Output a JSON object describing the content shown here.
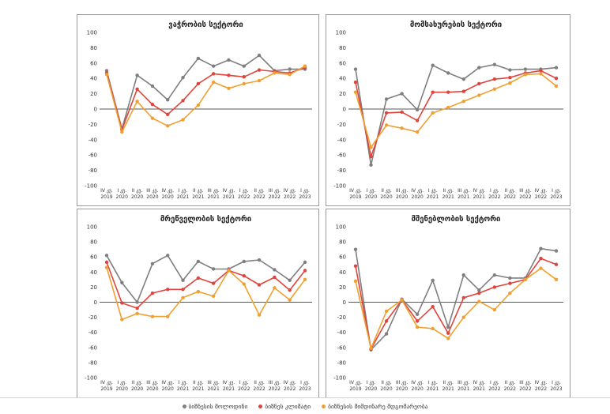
{
  "chart_data": [
    {
      "type": "line",
      "title": "ვაჭრობის სექტორი",
      "ylim": [
        -100,
        100
      ],
      "yticks": [
        100,
        80,
        60,
        40,
        20,
        0,
        -20,
        -40,
        -60,
        -80,
        -100
      ],
      "categories": [
        [
          "IV კვ.",
          "2019"
        ],
        [
          "I კვ.",
          "2020"
        ],
        [
          "II კვ.",
          "2020"
        ],
        [
          "III კვ.",
          "2020"
        ],
        [
          "IV კვ.",
          "2020"
        ],
        [
          "I კვ.",
          "2021"
        ],
        [
          "II კვ.",
          "2021"
        ],
        [
          "III კვ.",
          "2021"
        ],
        [
          "IV კვ.",
          "2021"
        ],
        [
          "I კვ.",
          "2022"
        ],
        [
          "II კვ.",
          "2022"
        ],
        [
          "III კვ.",
          "2022"
        ],
        [
          "IV კვ.",
          "2022"
        ],
        [
          "I კვ.",
          "2023"
        ]
      ],
      "series": [
        {
          "name": "ბიზნესის მოლოდინი",
          "color": "#7f7f7f",
          "values": [
            50,
            -26,
            44,
            30,
            12,
            41,
            66,
            56,
            64,
            56,
            70,
            50,
            52,
            52
          ]
        },
        {
          "name": "ბიზნეს კლიმატი",
          "color": "#e0443c",
          "values": [
            47,
            -27,
            26,
            6,
            -7,
            11,
            33,
            46,
            44,
            42,
            51,
            49,
            47,
            54
          ]
        },
        {
          "name": "ბიზნესის მიმდინარე მდგომარეობა",
          "color": "#f0a030",
          "values": [
            45,
            -30,
            10,
            -12,
            -22,
            -14,
            5,
            35,
            27,
            33,
            37,
            47,
            45,
            56
          ]
        }
      ]
    },
    {
      "type": "line",
      "title": "მომსახურების სექტორი",
      "ylim": [
        -100,
        100
      ],
      "yticks": [
        100,
        80,
        60,
        40,
        20,
        0,
        -20,
        -40,
        -60,
        -80,
        -100
      ],
      "categories": [
        [
          "IV კვ.",
          "2019"
        ],
        [
          "I კვ.",
          "2020"
        ],
        [
          "II კვ.",
          "2020"
        ],
        [
          "III კვ.",
          "2020"
        ],
        [
          "IV კვ.",
          "2020"
        ],
        [
          "I კვ.",
          "2021"
        ],
        [
          "II კვ.",
          "2021"
        ],
        [
          "III კვ.",
          "2021"
        ],
        [
          "IV კვ.",
          "2021"
        ],
        [
          "I კვ.",
          "2022"
        ],
        [
          "II კვ.",
          "2022"
        ],
        [
          "III კვ.",
          "2022"
        ],
        [
          "IV კვ.",
          "2022"
        ],
        [
          "I კვ.",
          "2023"
        ]
      ],
      "series": [
        {
          "name": "ბიზნესის მოლოდინი",
          "color": "#7f7f7f",
          "values": [
            52,
            -73,
            13,
            20,
            -1,
            57,
            47,
            39,
            54,
            58,
            51,
            52,
            52,
            54
          ]
        },
        {
          "name": "ბიზნეს კლიმატი",
          "color": "#e0443c",
          "values": [
            35,
            -62,
            -5,
            -4,
            -15,
            22,
            22,
            23,
            33,
            39,
            41,
            47,
            50,
            40
          ]
        },
        {
          "name": "ბიზნესის მიმდინარე მდგომარეობა",
          "color": "#f0a030",
          "values": [
            22,
            -50,
            -21,
            -25,
            -30,
            -5,
            2,
            10,
            18,
            26,
            34,
            45,
            46,
            30
          ]
        }
      ]
    },
    {
      "type": "line",
      "title": "მრეწველობის სექტორი",
      "ylim": [
        -100,
        100
      ],
      "yticks": [
        100,
        80,
        60,
        40,
        20,
        0,
        -20,
        -40,
        -60,
        -80,
        -100
      ],
      "categories": [
        [
          "IV კვ.",
          "2019"
        ],
        [
          "I კვ.",
          "2020"
        ],
        [
          "II კვ.",
          "2020"
        ],
        [
          "III კვ.",
          "2020"
        ],
        [
          "IV კვ.",
          "2020"
        ],
        [
          "I კვ.",
          "2021"
        ],
        [
          "II კვ.",
          "2021"
        ],
        [
          "III კვ.",
          "2021"
        ],
        [
          "IV კვ.",
          "2021"
        ],
        [
          "I კვ.",
          "2022"
        ],
        [
          "II კვ.",
          "2022"
        ],
        [
          "III კვ.",
          "2022"
        ],
        [
          "IV კვ.",
          "2022"
        ],
        [
          "I კვ.",
          "2023"
        ]
      ],
      "series": [
        {
          "name": "ბიზნესის მოლოდინი",
          "color": "#7f7f7f",
          "values": [
            62,
            26,
            0,
            51,
            62,
            29,
            54,
            44,
            44,
            54,
            56,
            43,
            29,
            53
          ]
        },
        {
          "name": "ბიზნეს კლიმატი",
          "color": "#e0443c",
          "values": [
            53,
            -1,
            -8,
            12,
            17,
            17,
            32,
            25,
            42,
            35,
            23,
            33,
            16,
            42
          ]
        },
        {
          "name": "ბიზნესის მიმდინარე მდგომარეობა",
          "color": "#f0a030",
          "values": [
            46,
            -23,
            -15,
            -19,
            -19,
            6,
            14,
            8,
            42,
            24,
            -17,
            19,
            3,
            30
          ]
        }
      ]
    },
    {
      "type": "line",
      "title": "მშენებლობის სექტორი",
      "ylim": [
        -100,
        100
      ],
      "yticks": [
        100,
        80,
        60,
        40,
        20,
        0,
        -20,
        -40,
        -60,
        -80,
        -100
      ],
      "categories": [
        [
          "IV კვ.",
          "2019"
        ],
        [
          "I კვ.",
          "2020"
        ],
        [
          "II კვ.",
          "2020"
        ],
        [
          "III კვ.",
          "2020"
        ],
        [
          "IV კვ.",
          "2020"
        ],
        [
          "I კვ.",
          "2021"
        ],
        [
          "II კვ.",
          "2021"
        ],
        [
          "III კვ.",
          "2021"
        ],
        [
          "IV კვ.",
          "2021"
        ],
        [
          "I კვ.",
          "2022"
        ],
        [
          "II კვ.",
          "2022"
        ],
        [
          "III კვ.",
          "2022"
        ],
        [
          "IV კვ.",
          "2022"
        ],
        [
          "I კვ.",
          "2023"
        ]
      ],
      "series": [
        {
          "name": "ბიზნესის მოლოდინი",
          "color": "#7f7f7f",
          "values": [
            70,
            -63,
            -42,
            4,
            -16,
            29,
            -33,
            36,
            16,
            36,
            32,
            32,
            71,
            68
          ]
        },
        {
          "name": "ბიზნეს კლიმატი",
          "color": "#e0443c",
          "values": [
            48,
            -62,
            -25,
            3,
            -25,
            -6,
            -41,
            6,
            12,
            20,
            25,
            30,
            58,
            50
          ]
        },
        {
          "name": "ბიზნესის მიმდინარე მდგომარეობა",
          "color": "#f0a030",
          "values": [
            28,
            -61,
            -12,
            3,
            -33,
            -35,
            -48,
            -20,
            1,
            -10,
            12,
            30,
            45,
            30
          ]
        }
      ]
    }
  ],
  "legend": {
    "items": [
      {
        "label": "ბიზნესის მოლოდინი",
        "color": "#7f7f7f"
      },
      {
        "label": "ბიზნეს კლიმატი",
        "color": "#e0443c"
      },
      {
        "label": "ბიზნესის მიმდინარე მდგომარეობა",
        "color": "#f0a030"
      }
    ]
  }
}
